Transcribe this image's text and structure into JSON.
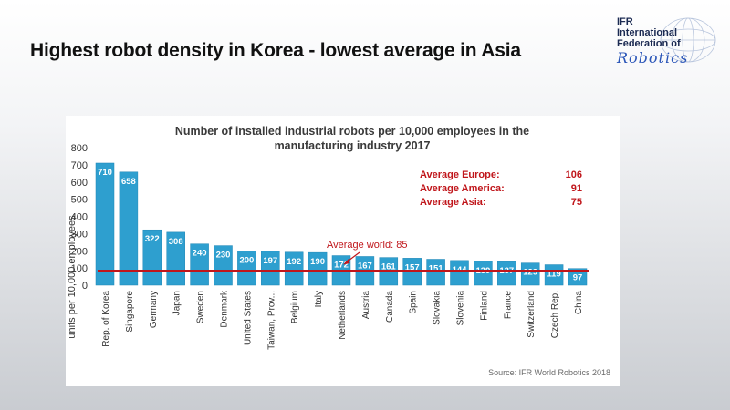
{
  "slide": {
    "title": "Highest robot density in Korea - lowest average in Asia"
  },
  "logo": {
    "line1": "IFR",
    "line2": "International",
    "line3": "Federation of",
    "line4": "Robotics"
  },
  "colors": {
    "bar": "#2e9fcf",
    "bar_edge": "#1f86b5",
    "average_line": "#c0161b",
    "average_text": "#c0161b",
    "axis_text": "#333333"
  },
  "chart_data": {
    "type": "bar",
    "title_line1": "Number of installed industrial robots per 10,000 employees in the",
    "title_line2": "manufacturing industry 2017",
    "ylabel": "units per 10,000 employees",
    "xlabel": "",
    "ylim": [
      0,
      800
    ],
    "yticks": [
      0,
      100,
      200,
      300,
      400,
      500,
      600,
      700,
      800
    ],
    "categories": [
      "Rep. of Korea",
      "Singapore",
      "Germany",
      "Japan",
      "Sweden",
      "Denmark",
      "United States",
      "Taiwan, Prov...",
      "Belgium",
      "Italy",
      "Netherlands",
      "Austria",
      "Canada",
      "Spain",
      "Slovakia",
      "Slovenia",
      "Finland",
      "France",
      "Switzerland",
      "Czech Rep.",
      "China"
    ],
    "values": [
      710,
      658,
      322,
      308,
      240,
      230,
      200,
      197,
      192,
      190,
      172,
      167,
      161,
      157,
      151,
      144,
      139,
      137,
      129,
      119,
      97
    ],
    "data_labels": [
      "710",
      "658",
      "322",
      "308",
      "240",
      "230",
      "200",
      "197",
      "192",
      "190",
      "172",
      "167",
      "161",
      "157",
      "151",
      "144",
      "139",
      "137",
      "129",
      "119",
      "97"
    ],
    "average_world": {
      "label": "Average world: 85",
      "value": 85
    },
    "averages": [
      {
        "name": "Average Europe:",
        "value": "106"
      },
      {
        "name": "Average America:",
        "value": "91"
      },
      {
        "name": "Average Asia:",
        "value": "75"
      }
    ],
    "source": "Source: IFR World Robotics 2018"
  }
}
